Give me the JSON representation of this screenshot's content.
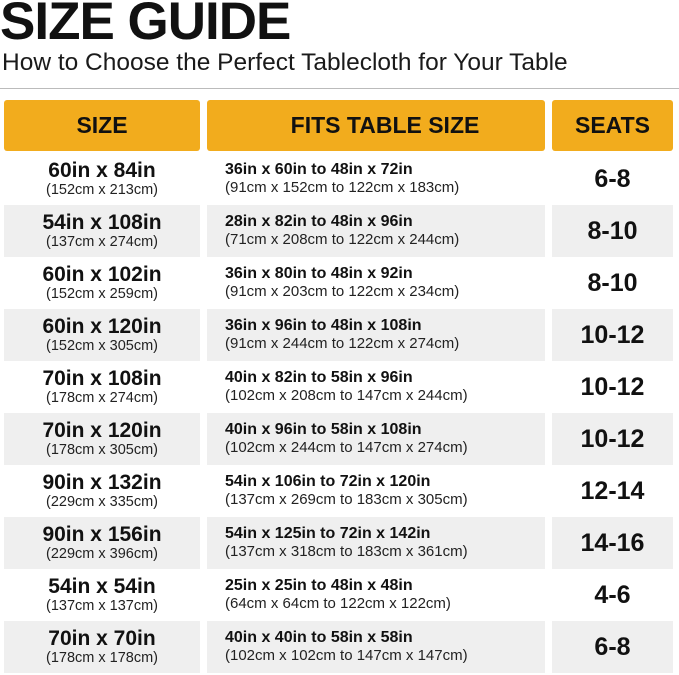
{
  "title": "SIZE GUIDE",
  "subtitle": "How to Choose the Perfect Tablecloth for Your Table",
  "colors": {
    "header_bg": "#f2ac1d",
    "alt_row_bg": "#efefef"
  },
  "headers": [
    "SIZE",
    "FITS TABLE SIZE",
    "SEATS"
  ],
  "rows": [
    {
      "size": "60in x 84in",
      "size_cm": "(152cm x 213cm)",
      "fits": "36in x 60in to 48in x 72in",
      "fits_cm": "(91cm x 152cm to 122cm x 183cm)",
      "seats": "6-8"
    },
    {
      "size": "54in x 108in",
      "size_cm": "(137cm x 274cm)",
      "fits": "28in x 82in to 48in x 96in",
      "fits_cm": "(71cm x 208cm to 122cm x 244cm)",
      "seats": "8-10"
    },
    {
      "size": "60in x 102in",
      "size_cm": "(152cm x 259cm)",
      "fits": "36in x 80in to 48in x 92in",
      "fits_cm": "(91cm x 203cm to 122cm x 234cm)",
      "seats": "8-10"
    },
    {
      "size": "60in x 120in",
      "size_cm": "(152cm x 305cm)",
      "fits": "36in x 96in to 48in x 108in",
      "fits_cm": "(91cm x 244cm to 122cm x 274cm)",
      "seats": "10-12"
    },
    {
      "size": "70in x 108in",
      "size_cm": "(178cm x 274cm)",
      "fits": "40in x 82in to 58in x 96in",
      "fits_cm": "(102cm x 208cm to 147cm x 244cm)",
      "seats": "10-12"
    },
    {
      "size": "70in x 120in",
      "size_cm": "(178cm x 305cm)",
      "fits": "40in x 96in to 58in x 108in",
      "fits_cm": "(102cm x 244cm to 147cm x 274cm)",
      "seats": "10-12"
    },
    {
      "size": "90in x 132in",
      "size_cm": "(229cm x 335cm)",
      "fits": "54in x 106in to 72in x 120in",
      "fits_cm": "(137cm x 269cm to 183cm x 305cm)",
      "seats": "12-14"
    },
    {
      "size": "90in x 156in",
      "size_cm": "(229cm x 396cm)",
      "fits": "54in x 125in to 72in x 142in",
      "fits_cm": "(137cm x 318cm to 183cm x 361cm)",
      "seats": "14-16"
    },
    {
      "size": "54in x 54in",
      "size_cm": "(137cm x 137cm)",
      "fits": "25in x 25in to 48in x 48in",
      "fits_cm": "(64cm x 64cm to 122cm x 122cm)",
      "seats": "4-6"
    },
    {
      "size": "70in x 70in",
      "size_cm": "(178cm x 178cm)",
      "fits": "40in x 40in to 58in x 58in",
      "fits_cm": "(102cm x 102cm to 147cm x 147cm)",
      "seats": "6-8"
    }
  ]
}
